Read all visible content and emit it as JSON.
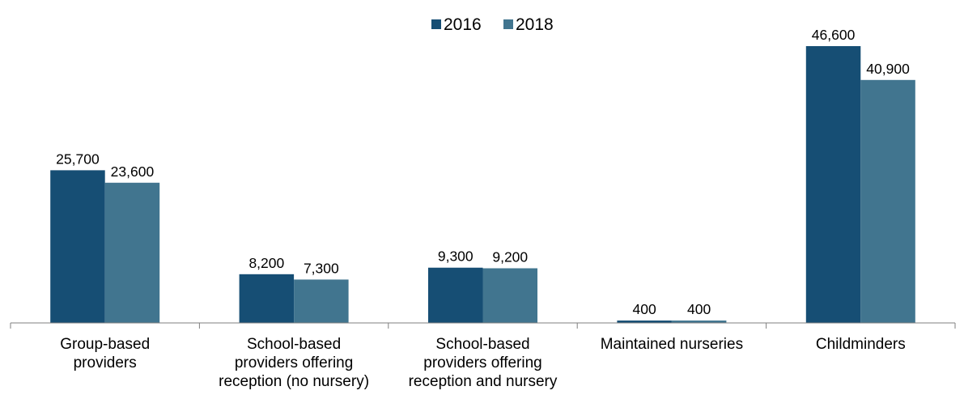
{
  "chart_data": {
    "type": "bar",
    "categories": [
      [
        "Group-based",
        "providers"
      ],
      [
        "School-based",
        "providers offering",
        "reception (no nursery)"
      ],
      [
        "School-based",
        "providers offering",
        "reception and nursery"
      ],
      [
        "Maintained nurseries"
      ],
      [
        "Childminders"
      ]
    ],
    "series": [
      {
        "name": "2016",
        "color": "#164e74",
        "values": [
          25700,
          8200,
          9300,
          400,
          46600
        ],
        "labels": [
          "25,700",
          "8,200",
          "9,300",
          "400",
          "46,600"
        ]
      },
      {
        "name": "2018",
        "color": "#41758f",
        "values": [
          23600,
          7300,
          9200,
          400,
          40900
        ],
        "labels": [
          "23,600",
          "7,300",
          "9,200",
          "400",
          "40,900"
        ]
      }
    ],
    "title": "",
    "xlabel": "",
    "ylabel": "",
    "ylim": [
      0,
      53000
    ],
    "grid": false,
    "legend_position": "top-center"
  }
}
